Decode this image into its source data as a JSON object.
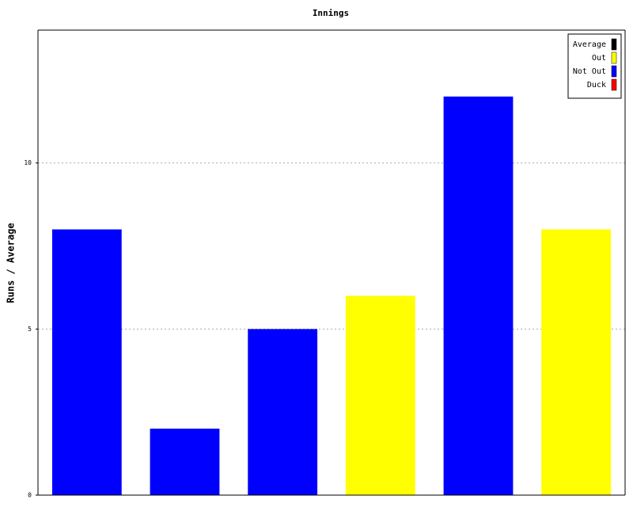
{
  "chart_data": {
    "type": "bar",
    "title": "Innings",
    "y_label": "Runs / Average",
    "categories": [
      null,
      null,
      null,
      null,
      null,
      null
    ],
    "series": [
      {
        "name": "Average",
        "color": "#000000",
        "values": [
          null,
          null,
          null,
          null,
          null,
          null
        ]
      },
      {
        "name": "Out",
        "color": "#ffff00",
        "values": [
          null,
          null,
          null,
          6,
          null,
          8
        ]
      },
      {
        "name": "Not Out",
        "color": "#0000ff",
        "values": [
          8,
          2,
          5,
          null,
          12,
          null
        ]
      },
      {
        "name": "Duck",
        "color": "#ff0000",
        "values": [
          null,
          null,
          null,
          null,
          null,
          null
        ]
      }
    ],
    "ylim": [
      0,
      14
    ],
    "yticks": [
      0,
      5,
      10
    ],
    "grid": true,
    "legend": "top-right"
  }
}
